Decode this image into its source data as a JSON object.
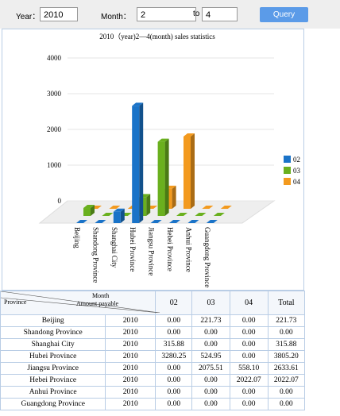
{
  "form": {
    "year_label": "Year：",
    "year": "2010",
    "month_label": "Month：",
    "month_from": "2",
    "to_label": "to",
    "month_to": "4",
    "button": "Query"
  },
  "chart_data": {
    "type": "bar3d",
    "title": "2010（year)2—4(month) sales statistics",
    "categories": [
      "Beijing",
      "Shandong Province",
      "Shanghai City",
      "Hubei Province",
      "Jiangsu Province",
      "Hebei Province",
      "Anhui Province",
      "Guangdong Province"
    ],
    "series": [
      {
        "name": "02",
        "color": "#1a73c8",
        "values": [
          0,
          0,
          315.88,
          3280.25,
          0,
          0,
          0,
          0
        ]
      },
      {
        "name": "03",
        "color": "#6ab01e",
        "values": [
          221.73,
          0,
          0,
          524.95,
          2075.51,
          0,
          0,
          0
        ]
      },
      {
        "name": "04",
        "color": "#f39a1e",
        "values": [
          0,
          0,
          0,
          0,
          558.1,
          2022.07,
          0,
          0
        ]
      }
    ],
    "ylim": [
      0,
      4000
    ],
    "yticks": [
      0,
      1000,
      2000,
      3000,
      4000
    ],
    "grid": true,
    "legend": "right"
  },
  "table": {
    "header": {
      "month": "Month",
      "amount": "Amount payable",
      "province": "Province",
      "cols": [
        "02",
        "03",
        "04",
        "Total"
      ]
    },
    "rows": [
      [
        "Beijing",
        "2010",
        "0.00",
        "221.73",
        "0.00",
        "221.73"
      ],
      [
        "Shandong Province",
        "2010",
        "0.00",
        "0.00",
        "0.00",
        "0.00"
      ],
      [
        "Shanghai City",
        "2010",
        "315.88",
        "0.00",
        "0.00",
        "315.88"
      ],
      [
        "Hubei Province",
        "2010",
        "3280.25",
        "524.95",
        "0.00",
        "3805.20"
      ],
      [
        "Jiangsu Province",
        "2010",
        "0.00",
        "2075.51",
        "558.10",
        "2633.61"
      ],
      [
        "Hebei Province",
        "2010",
        "0.00",
        "0.00",
        "2022.07",
        "2022.07"
      ],
      [
        "Anhui Province",
        "2010",
        "0.00",
        "0.00",
        "0.00",
        "0.00"
      ],
      [
        "Guangdong Province",
        "2010",
        "0.00",
        "0.00",
        "0.00",
        "0.00"
      ]
    ]
  }
}
